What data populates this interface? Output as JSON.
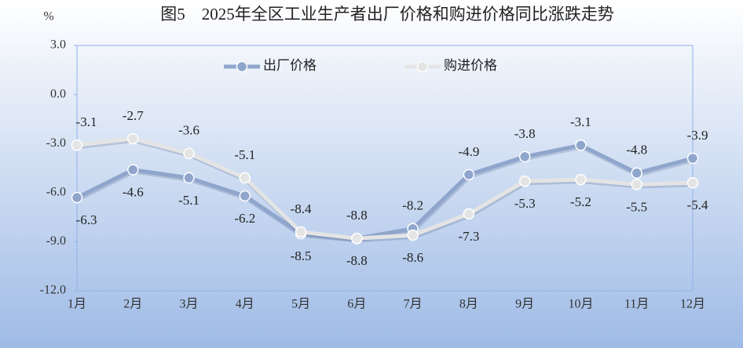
{
  "chart_data": {
    "type": "line",
    "title": "图5　2025年全区工业生产者出厂价格和购进价格同比涨跌走势",
    "y_label": "%",
    "categories": [
      "1月",
      "2月",
      "3月",
      "4月",
      "5月",
      "6月",
      "7月",
      "8月",
      "9月",
      "10月",
      "11月",
      "12月"
    ],
    "series": [
      {
        "name": "出厂价格",
        "color": "#8fa5cc",
        "values": [
          -6.3,
          -4.6,
          -5.1,
          -6.2,
          -8.5,
          -8.8,
          -8.2,
          -4.9,
          -3.8,
          -3.1,
          -4.8,
          -3.9
        ]
      },
      {
        "name": "购进价格",
        "color": "#e4e4e4",
        "values": [
          -3.1,
          -2.7,
          -3.6,
          -5.1,
          -8.4,
          -8.8,
          -8.6,
          -7.3,
          -5.3,
          -5.2,
          -5.5,
          -5.4
        ]
      }
    ],
    "ylim": [
      -12,
      3
    ],
    "yticks": [
      {
        "value": -12,
        "label": "-12.0"
      },
      {
        "value": -9,
        "label": "-9.0"
      },
      {
        "value": -6,
        "label": "-6.0"
      },
      {
        "value": -3,
        "label": "-3.0"
      },
      {
        "value": 0,
        "label": "0.0"
      },
      {
        "value": 3,
        "label": "3.0"
      }
    ],
    "legend": "top"
  }
}
